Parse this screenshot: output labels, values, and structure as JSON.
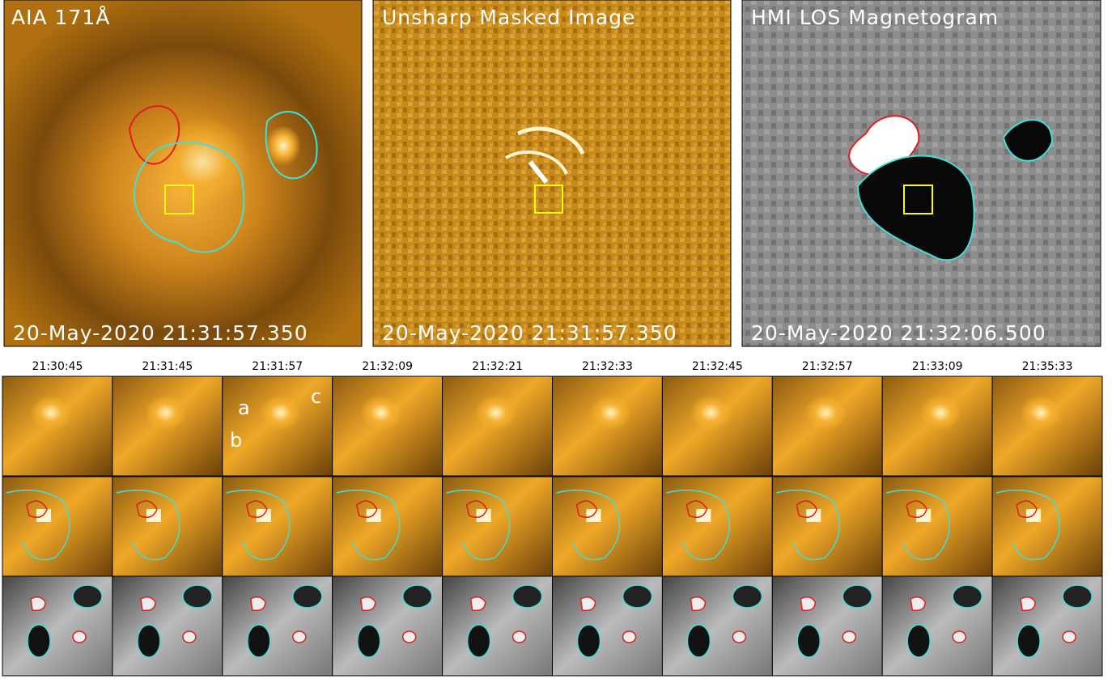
{
  "panels": [
    {
      "title": "AIA 171Å",
      "timestamp": "20-May-2020 21:31:57.350"
    },
    {
      "title": "Unsharp Masked Image",
      "timestamp": "20-May-2020 21:31:57.350"
    },
    {
      "title": "HMI LOS Magnetogram",
      "timestamp": "20-May-2020 21:32:06.500"
    }
  ],
  "columns": [
    "21:30:45",
    "21:31:45",
    "21:31:57",
    "21:32:09",
    "21:32:21",
    "21:32:33",
    "21:32:45",
    "21:32:57",
    "21:33:09",
    "21:35:33"
  ],
  "labels": [
    "a",
    "b",
    "c"
  ]
}
